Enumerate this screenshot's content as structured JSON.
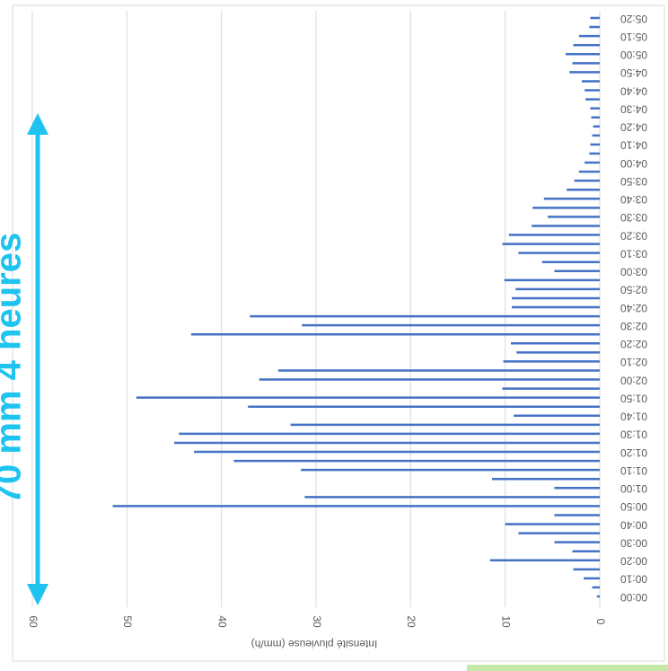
{
  "chart_data": {
    "type": "bar",
    "orientation": "horizontal",
    "x_label": "Intensité pluvieuse (mm/h)",
    "annotation": "70 mm 4 heures",
    "categories": [
      "00:00",
      null,
      "00:10",
      null,
      "00:20",
      null,
      "00:30",
      null,
      "00:40",
      null,
      "00:50",
      null,
      "01:00",
      null,
      "01:10",
      null,
      "01:20",
      null,
      "01:30",
      null,
      "01:40",
      null,
      "01:50",
      null,
      "02:00",
      null,
      "02:10",
      null,
      "02:20",
      null,
      "02:30",
      null,
      "02:40",
      null,
      "02:50",
      null,
      "03:00",
      null,
      "03:10",
      null,
      "03:20",
      null,
      "03:30",
      null,
      "03:40",
      null,
      "03:50",
      null,
      "04:00",
      null,
      "04:10",
      null,
      "04:20",
      null,
      "04:30",
      null,
      "04:40",
      null,
      "04:50",
      null,
      "05:00",
      null,
      "05:10",
      null,
      "05:20"
    ],
    "values": [
      0.3,
      0.8,
      1.7,
      2.8,
      11.6,
      2.9,
      4.8,
      8.6,
      10,
      4.8,
      51.5,
      31.2,
      4.8,
      11.4,
      31.6,
      38.7,
      42.9,
      45,
      44.5,
      32.7,
      9.1,
      37.2,
      49,
      10.3,
      36,
      34,
      10.2,
      8.8,
      9.4,
      43.2,
      31.5,
      37,
      9.3,
      9.3,
      8.9,
      10.1,
      4.8,
      6.1,
      8.6,
      10.3,
      9.6,
      7.2,
      5.5,
      7.1,
      5.9,
      3.5,
      2.7,
      2.2,
      1.6,
      1.1,
      1.0,
      0.8,
      0.7,
      0.9,
      1.0,
      1.5,
      1.6,
      1.9,
      3.2,
      2.9,
      3.6,
      2.8,
      2.2,
      1.1,
      1.0
    ],
    "color": "#4472c4",
    "annotation_color": "#1ec3f0",
    "xlim": [
      0,
      60
    ],
    "xticks": [
      0,
      10,
      20,
      30,
      40,
      50,
      60
    ],
    "grid": true
  }
}
